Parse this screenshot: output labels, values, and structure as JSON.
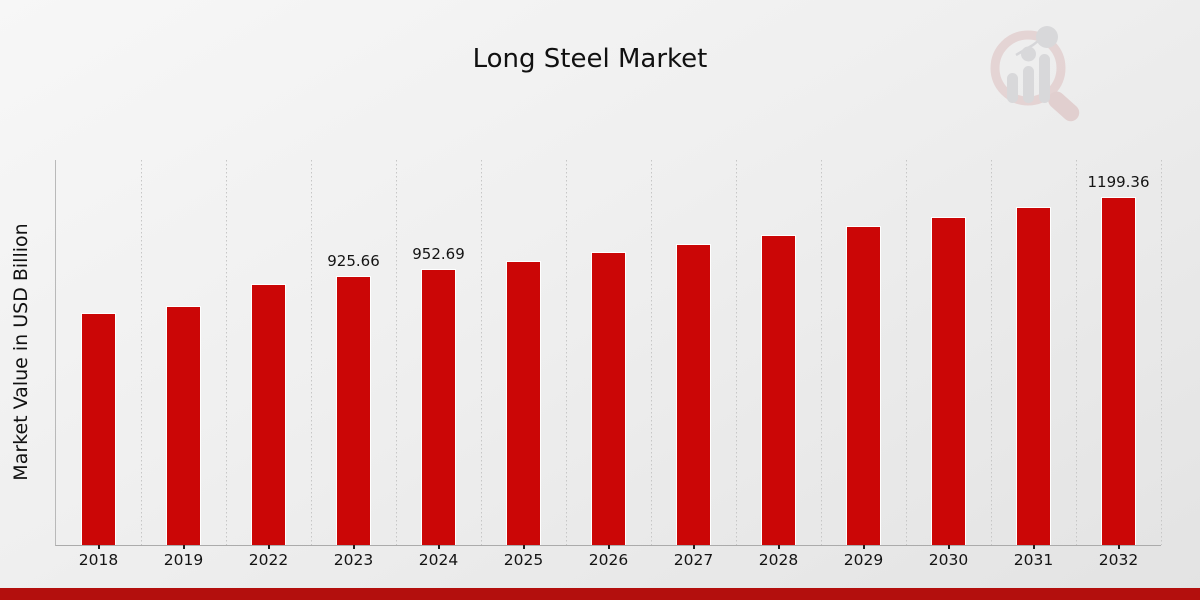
{
  "page": {
    "title": "Long Steel Market"
  },
  "chart_data": {
    "type": "bar",
    "title": "Long Steel Market",
    "ylabel": "Market Value in USD Billion",
    "xlabel": "",
    "categories": [
      "2018",
      "2019",
      "2022",
      "2023",
      "2024",
      "2025",
      "2026",
      "2027",
      "2028",
      "2029",
      "2030",
      "2031",
      "2032"
    ],
    "values": [
      799,
      824.4,
      899.8,
      925.66,
      952.69,
      980.5,
      1009.1,
      1038.6,
      1068.9,
      1100.1,
      1132.3,
      1165.3,
      1199.36
    ],
    "data_labels": [
      {
        "category": "2023",
        "text": "925.66"
      },
      {
        "category": "2024",
        "text": "952.69"
      },
      {
        "category": "2032",
        "text": "1199.36"
      }
    ],
    "ylim": [
      0,
      1327
    ],
    "grid": "vertical-dashed",
    "legend": "none",
    "bar_color": "#cb0606"
  },
  "colors": {
    "bar": "#cb0606",
    "bar_edge": "#ffffff",
    "bottom_strip": "#b30f0d",
    "gridline": "#c6c6c6",
    "axis": "#b3b3b3",
    "text": "#141414"
  },
  "watermark": {
    "icon": "market-research-future-logo"
  }
}
